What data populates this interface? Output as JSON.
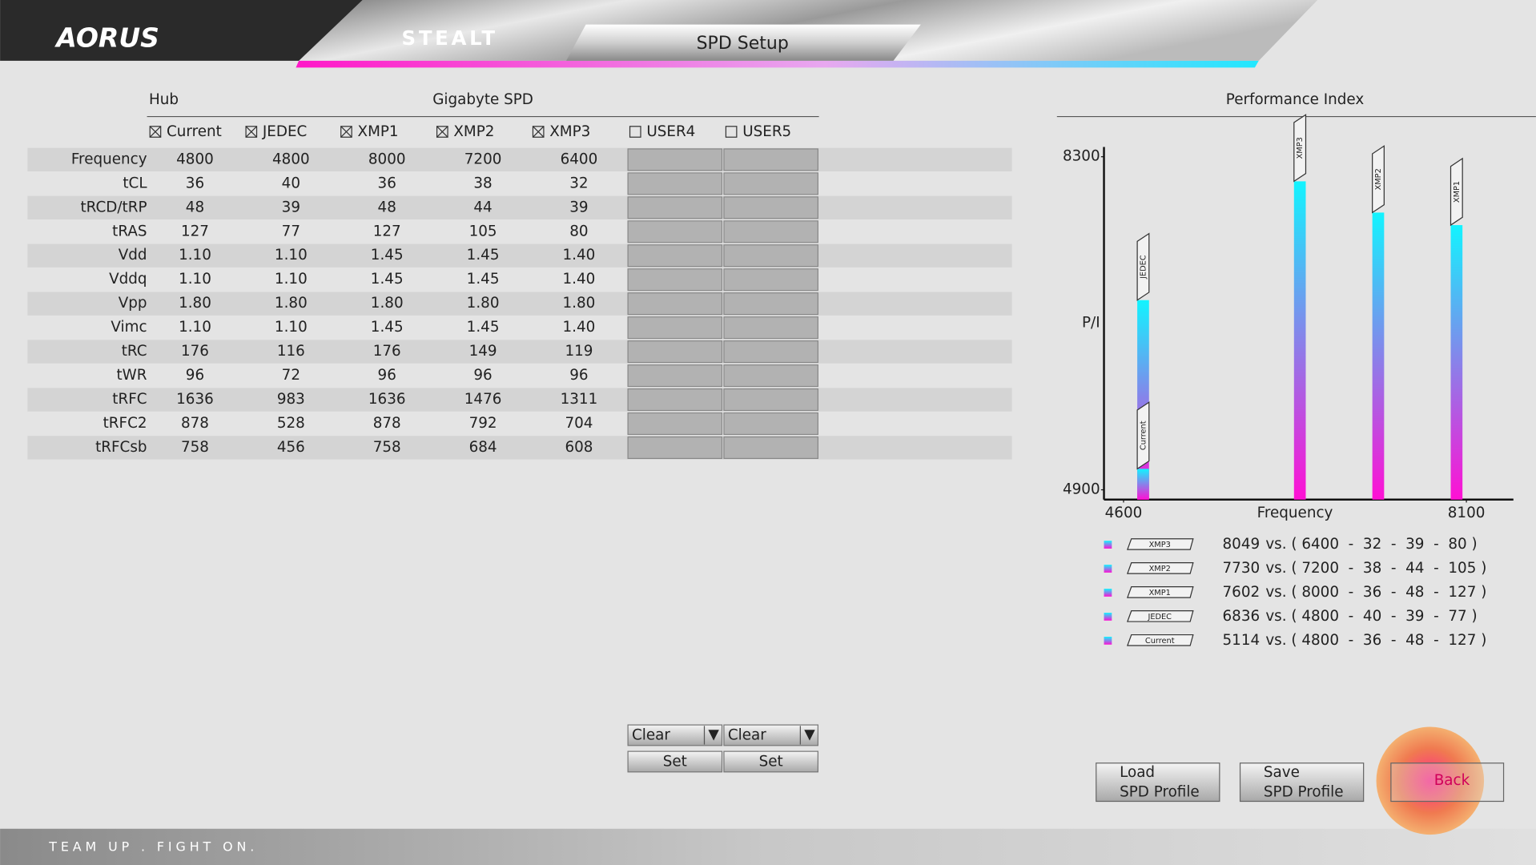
{
  "header": {
    "logo": "AORUS",
    "product": "STEALT",
    "title": "SPD Setup"
  },
  "table": {
    "hub_label": "Hub",
    "group_label": "Gigabyte SPD",
    "columns": [
      {
        "label": "Current",
        "checked": true
      },
      {
        "label": "JEDEC",
        "checked": true
      },
      {
        "label": "XMP1",
        "checked": true
      },
      {
        "label": "XMP2",
        "checked": true
      },
      {
        "label": "XMP3",
        "checked": true
      },
      {
        "label": "USER4",
        "checked": false
      },
      {
        "label": "USER5",
        "checked": false
      }
    ],
    "rows": [
      {
        "label": "Frequency",
        "values": [
          4800,
          4800,
          8000,
          7200,
          6400
        ]
      },
      {
        "label": "tCL",
        "values": [
          36,
          40,
          36,
          38,
          32
        ]
      },
      {
        "label": "tRCD/tRP",
        "values": [
          48,
          39,
          48,
          44,
          39
        ]
      },
      {
        "label": "tRAS",
        "values": [
          127,
          77,
          127,
          105,
          80
        ]
      },
      {
        "label": "Vdd",
        "values": [
          "1.10",
          "1.10",
          "1.45",
          "1.45",
          "1.40"
        ]
      },
      {
        "label": "Vddq",
        "values": [
          "1.10",
          "1.10",
          "1.45",
          "1.45",
          "1.40"
        ]
      },
      {
        "label": "Vpp",
        "values": [
          "1.80",
          "1.80",
          "1.80",
          "1.80",
          "1.80"
        ]
      },
      {
        "label": "Vimc",
        "values": [
          "1.10",
          "1.10",
          "1.45",
          "1.45",
          "1.40"
        ]
      },
      {
        "label": "tRC",
        "values": [
          176,
          116,
          176,
          149,
          119
        ]
      },
      {
        "label": "tWR",
        "values": [
          96,
          72,
          96,
          96,
          96
        ]
      },
      {
        "label": "tRFC",
        "values": [
          1636,
          983,
          1636,
          1476,
          1311
        ]
      },
      {
        "label": "tRFC2",
        "values": [
          878,
          528,
          878,
          792,
          704
        ]
      },
      {
        "label": "tRFCsb",
        "values": [
          758,
          456,
          758,
          684,
          608
        ]
      }
    ]
  },
  "user_controls": [
    {
      "dropdown": "Clear",
      "button": "Set"
    },
    {
      "dropdown": "Clear",
      "button": "Set"
    }
  ],
  "performance_index": {
    "type": "bar",
    "title": "Performance Index",
    "y_label": "P/I",
    "x_label": "Frequency",
    "xlim": [
      4400,
      8580
    ],
    "xticks": [
      4600,
      8100
    ],
    "ylim": [
      4800,
      8400
    ],
    "yticks": [
      4900,
      8300
    ],
    "bar_colors": [
      "#12f4ff",
      "#ff10d4"
    ],
    "series": [
      {
        "name": "XMP3",
        "score": 8049,
        "frequency": 6400,
        "detail": "vs. ( 6400  -  32  -  39  -  80 )"
      },
      {
        "name": "XMP2",
        "score": 7730,
        "frequency": 7200,
        "detail": "vs. ( 7200  -  38  -  44  -  105 )"
      },
      {
        "name": "XMP1",
        "score": 7602,
        "frequency": 8000,
        "detail": "vs. ( 8000  -  36  -  48  -  127 )"
      },
      {
        "name": "JEDEC",
        "score": 6836,
        "frequency": 4800,
        "detail": "vs. ( 4800  -  40  -  39  -  77 )"
      },
      {
        "name": "Current",
        "score": 5114,
        "frequency": 4800,
        "detail": "vs. ( 4800  -  36  -  48  -  127 )"
      }
    ]
  },
  "buttons": [
    {
      "lines": [
        "Load",
        "SPD Profile"
      ]
    },
    {
      "lines": [
        "Save",
        "SPD Profile"
      ]
    },
    {
      "lines": [
        "Back"
      ]
    }
  ],
  "footer": "TEAM UP . FIGHT ON."
}
